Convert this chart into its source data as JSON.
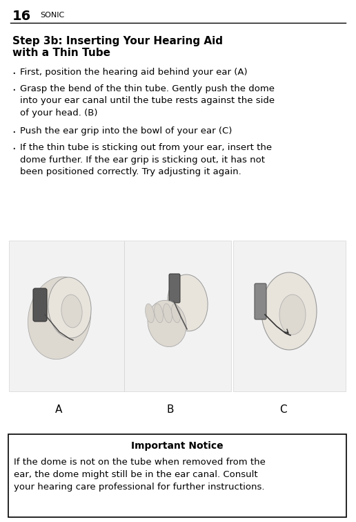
{
  "page_number": "16",
  "brand": "SONIC",
  "title_line1": "Step 3b: Inserting Your Hearing Aid",
  "title_line2": "with a Thin Tube",
  "bullet1": "First, position the hearing aid behind your ear (A)",
  "bullet2": "Grasp the bend of the thin tube. Gently push the dome\ninto your ear canal until the tube rests against the side\nof your head. (B)",
  "bullet3": "Push the ear grip into the bowl of your ear (C)",
  "bullet4": "If the thin tube is sticking out from your ear, insert the\ndome further. If the ear grip is sticking out, it has not\nbeen positioned correctly. Try adjusting it again.",
  "image_labels": [
    "A",
    "B",
    "C"
  ],
  "notice_title": "Important Notice",
  "notice_body": "If the dome is not on the tube when removed from the\near, the dome might still be in the ear canal. Consult\nyour hearing care professional for further instructions.",
  "bg_color": "#ffffff",
  "text_color": "#000000",
  "header_line_color": "#000000",
  "notice_box_color": "#ffffff",
  "notice_border_color": "#000000",
  "title_fontsize": 11,
  "body_fontsize": 9.5,
  "header_num_fontsize": 14,
  "brand_fontsize": 8,
  "notice_title_fontsize": 10,
  "notice_body_fontsize": 9.5,
  "label_fontsize": 11,
  "bullet_char": "·"
}
